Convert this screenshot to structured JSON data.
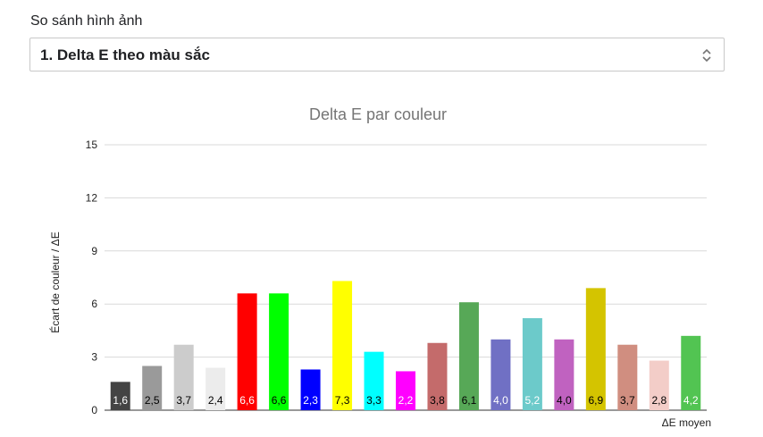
{
  "header": {
    "section_label": "So sánh hình ảnh"
  },
  "selector": {
    "value": "1. Delta E theo màu sắc",
    "icon": "chevron-up-down-icon"
  },
  "chart_data": {
    "type": "bar",
    "title": "Delta E par couleur",
    "xlabel": "ΔE moyen",
    "ylabel": "Écart de couleur / ΔE",
    "ylim": [
      0,
      15
    ],
    "yticks": [
      "0",
      "3",
      "6",
      "9",
      "12",
      "15"
    ],
    "grid": true,
    "values": [
      1.6,
      2.5,
      3.7,
      2.4,
      6.6,
      6.6,
      2.3,
      7.3,
      3.3,
      2.2,
      3.8,
      6.1,
      4.0,
      5.2,
      4.0,
      6.9,
      3.7,
      2.8,
      4.2
    ],
    "labels": [
      "1,6",
      "2,5",
      "3,7",
      "2,4",
      "6,6",
      "6,6",
      "2,3",
      "7,3",
      "3,3",
      "2,2",
      "3,8",
      "6,1",
      "4,0",
      "5,2",
      "4,0",
      "6,9",
      "3,7",
      "2,8",
      "4,2"
    ],
    "colors": [
      "#444444",
      "#9a9a9a",
      "#cccccc",
      "#ececec",
      "#ff0000",
      "#00ff00",
      "#0000ff",
      "#ffff00",
      "#00ffff",
      "#ff00ff",
      "#c46b6b",
      "#57a857",
      "#7070c4",
      "#6ccaca",
      "#c062c0",
      "#d4c400",
      "#d08e80",
      "#f3cdc8",
      "#52c452"
    ],
    "label_colors": [
      "#ffffff",
      "#000000",
      "#000000",
      "#000000",
      "#ffffff",
      "#000000",
      "#ffffff",
      "#000000",
      "#000000",
      "#ffffff",
      "#000000",
      "#000000",
      "#ffffff",
      "#ffffff",
      "#000000",
      "#000000",
      "#000000",
      "#000000",
      "#ffffff"
    ]
  }
}
